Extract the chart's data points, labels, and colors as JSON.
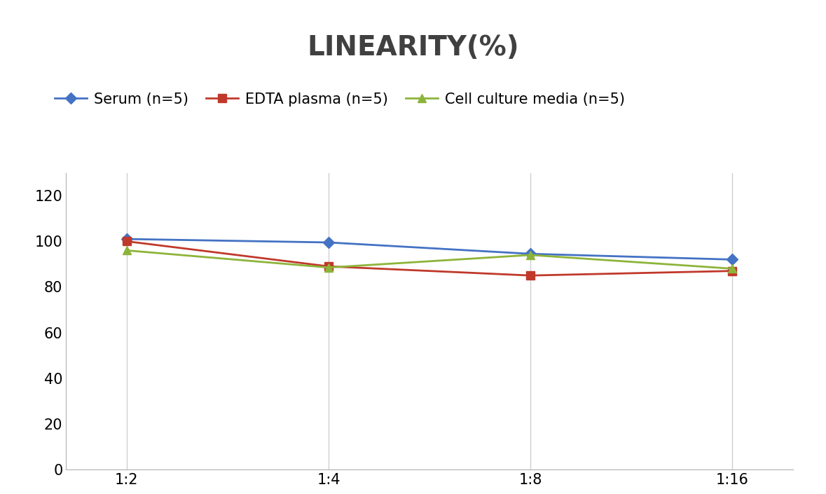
{
  "title": "LINEARITY(%)",
  "title_fontsize": 28,
  "title_fontweight": "bold",
  "title_color": "#404040",
  "x_labels": [
    "1:2",
    "1:4",
    "1:8",
    "1:16"
  ],
  "x_positions": [
    0,
    1,
    2,
    3
  ],
  "series": [
    {
      "label": "Serum (n=5)",
      "values": [
        101,
        99.5,
        94.5,
        92
      ],
      "color": "#4472C4",
      "marker": "D",
      "markersize": 8,
      "linewidth": 2
    },
    {
      "label": "EDTA plasma (n=5)",
      "values": [
        100,
        89,
        85,
        87
      ],
      "color": "#C0392B",
      "marker": "s",
      "markersize": 8,
      "linewidth": 2
    },
    {
      "label": "Cell culture media (n=5)",
      "values": [
        96,
        88.5,
        94,
        88
      ],
      "color": "#8DB43A",
      "marker": "^",
      "markersize": 8,
      "linewidth": 2
    }
  ],
  "ylim": [
    0,
    130
  ],
  "yticks": [
    0,
    20,
    40,
    60,
    80,
    100,
    120
  ],
  "background_color": "#ffffff",
  "grid_color": "#d0d0d0",
  "legend_fontsize": 15,
  "tick_fontsize": 15,
  "axis_linecolor": "#b0b0b0"
}
